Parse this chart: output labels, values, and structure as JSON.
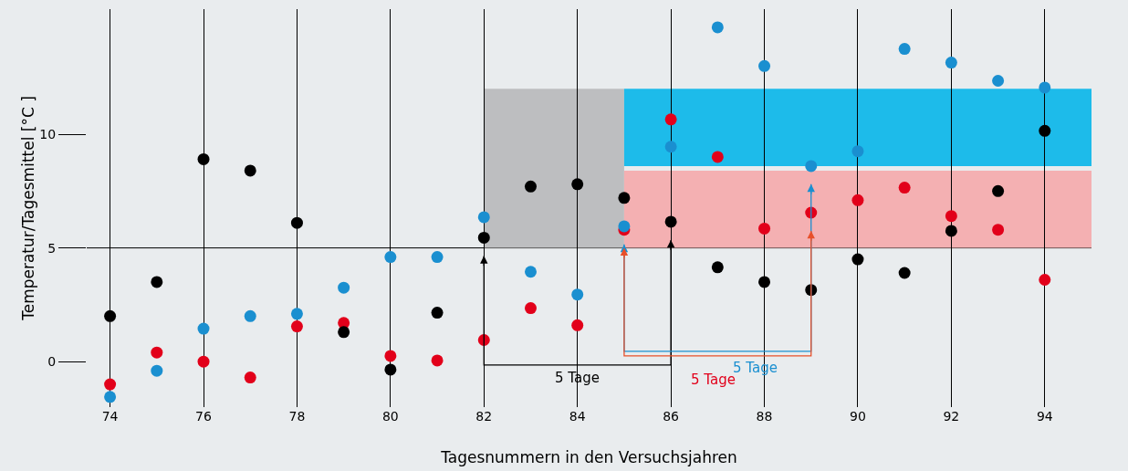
{
  "chart_data": {
    "type": "scatter",
    "xlabel": "Tagesnummern in den Versuchsjahren",
    "ylabel": "Temperatur/Tagesmittel [°C ]",
    "x": [
      74,
      75,
      76,
      77,
      78,
      79,
      80,
      81,
      82,
      83,
      84,
      85,
      86,
      87,
      88,
      89,
      90,
      91,
      92,
      93,
      94
    ],
    "series": [
      {
        "color": "#000000",
        "values": [
          2.0,
          3.5,
          8.9,
          8.4,
          6.1,
          1.3,
          -0.35,
          2.15,
          5.45,
          7.7,
          7.8,
          7.2,
          6.15,
          4.15,
          3.5,
          3.15,
          4.5,
          3.9,
          5.75,
          7.5,
          10.15
        ]
      },
      {
        "color": "#1a8fd0",
        "values": [
          -1.55,
          -0.4,
          1.45,
          2.0,
          2.1,
          3.25,
          4.6,
          4.6,
          6.35,
          3.95,
          2.95,
          5.95,
          9.45,
          14.7,
          13.0,
          8.6,
          9.25,
          13.75,
          13.15,
          12.35,
          12.05
        ]
      },
      {
        "color": "#e2001a",
        "values": [
          -1.0,
          0.4,
          0.0,
          -0.7,
          1.55,
          1.7,
          0.25,
          0.05,
          0.95,
          2.35,
          1.6,
          5.8,
          10.65,
          9.0,
          5.85,
          6.55,
          7.1,
          7.65,
          6.4,
          5.8,
          3.6
        ]
      }
    ],
    "xlim": [
      73.5,
      95
    ],
    "xticks": [
      74,
      76,
      78,
      80,
      82,
      84,
      86,
      88,
      90,
      92,
      94
    ],
    "ylim": [
      -2,
      15.5
    ],
    "yticks": [
      0,
      5,
      10
    ],
    "grid": "x",
    "marker": "circle",
    "ref_lines": [
      {
        "axis": "y",
        "value": 5,
        "color": "#000000"
      }
    ],
    "bands": [
      {
        "axis": "x",
        "from": 82,
        "to": 85,
        "color": "#bdbec0"
      },
      {
        "axis": "y",
        "from": 8.6,
        "to": 12,
        "color": "#1dbbea"
      },
      {
        "axis": "y",
        "from": 5,
        "to": 8.4,
        "color": "#f4b0b2"
      }
    ],
    "annotations": [
      "5 Tage",
      "5 Tage",
      "5 Tage"
    ]
  }
}
